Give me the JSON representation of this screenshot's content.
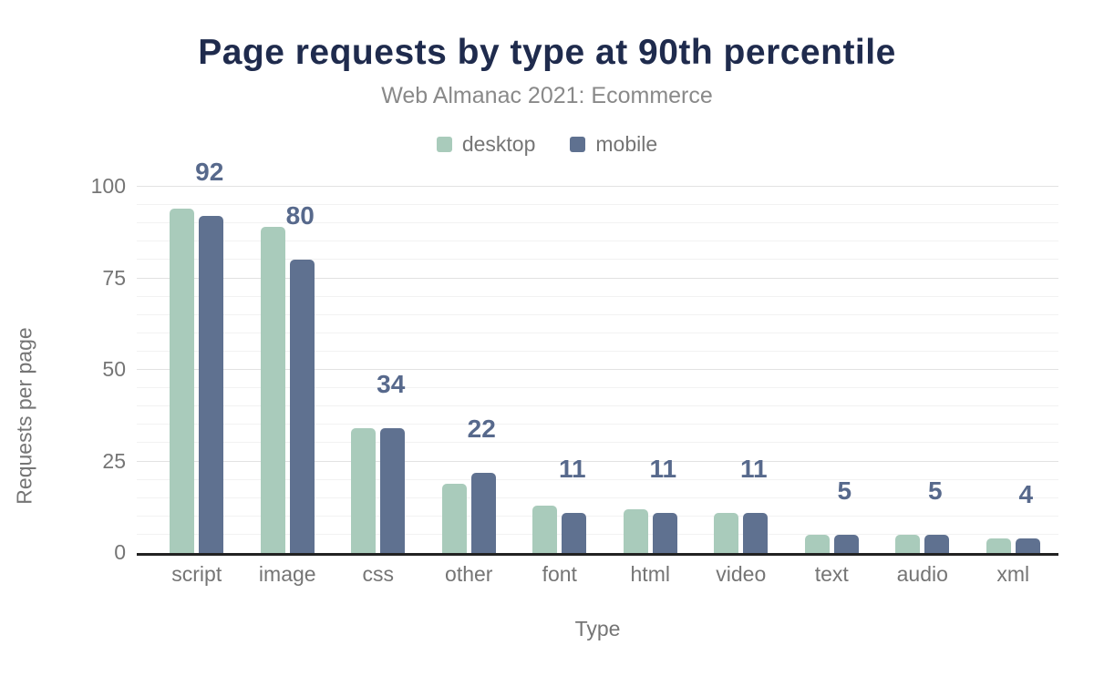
{
  "chart_data": {
    "type": "bar",
    "title": "Page requests by type at 90th percentile",
    "subtitle": "Web Almanac 2021: Ecommerce",
    "xlabel": "Type",
    "ylabel": "Requests per page",
    "ylim": [
      0,
      105
    ],
    "yticks": [
      0,
      25,
      50,
      75,
      100
    ],
    "grid": {
      "show": true,
      "minor_every": 5,
      "major_every": 25,
      "orientation": "horizontal"
    },
    "legend_position": "top-center",
    "categories": [
      "script",
      "image",
      "css",
      "other",
      "font",
      "html",
      "video",
      "text",
      "audio",
      "xml"
    ],
    "series": [
      {
        "name": "desktop",
        "color": "#a9cbbb",
        "values": [
          94,
          89,
          34,
          19,
          13,
          12,
          11,
          5,
          5,
          4
        ]
      },
      {
        "name": "mobile",
        "color": "#5f7190",
        "values": [
          92,
          80,
          34,
          22,
          11,
          11,
          11,
          5,
          5,
          4
        ]
      }
    ],
    "value_labels": {
      "labeled_series": "mobile",
      "values": [
        "92",
        "80",
        "34",
        "22",
        "11",
        "11",
        "11",
        "5",
        "5",
        "4"
      ]
    }
  },
  "colors": {
    "title": "#1f2b4d",
    "subtitle": "#898989",
    "axis_text": "#757575",
    "value_label": "#57698c",
    "axis_line": "#222222",
    "grid_major": "#e2e2e2",
    "grid_minor": "#f2f2f2",
    "background": "#ffffff"
  }
}
